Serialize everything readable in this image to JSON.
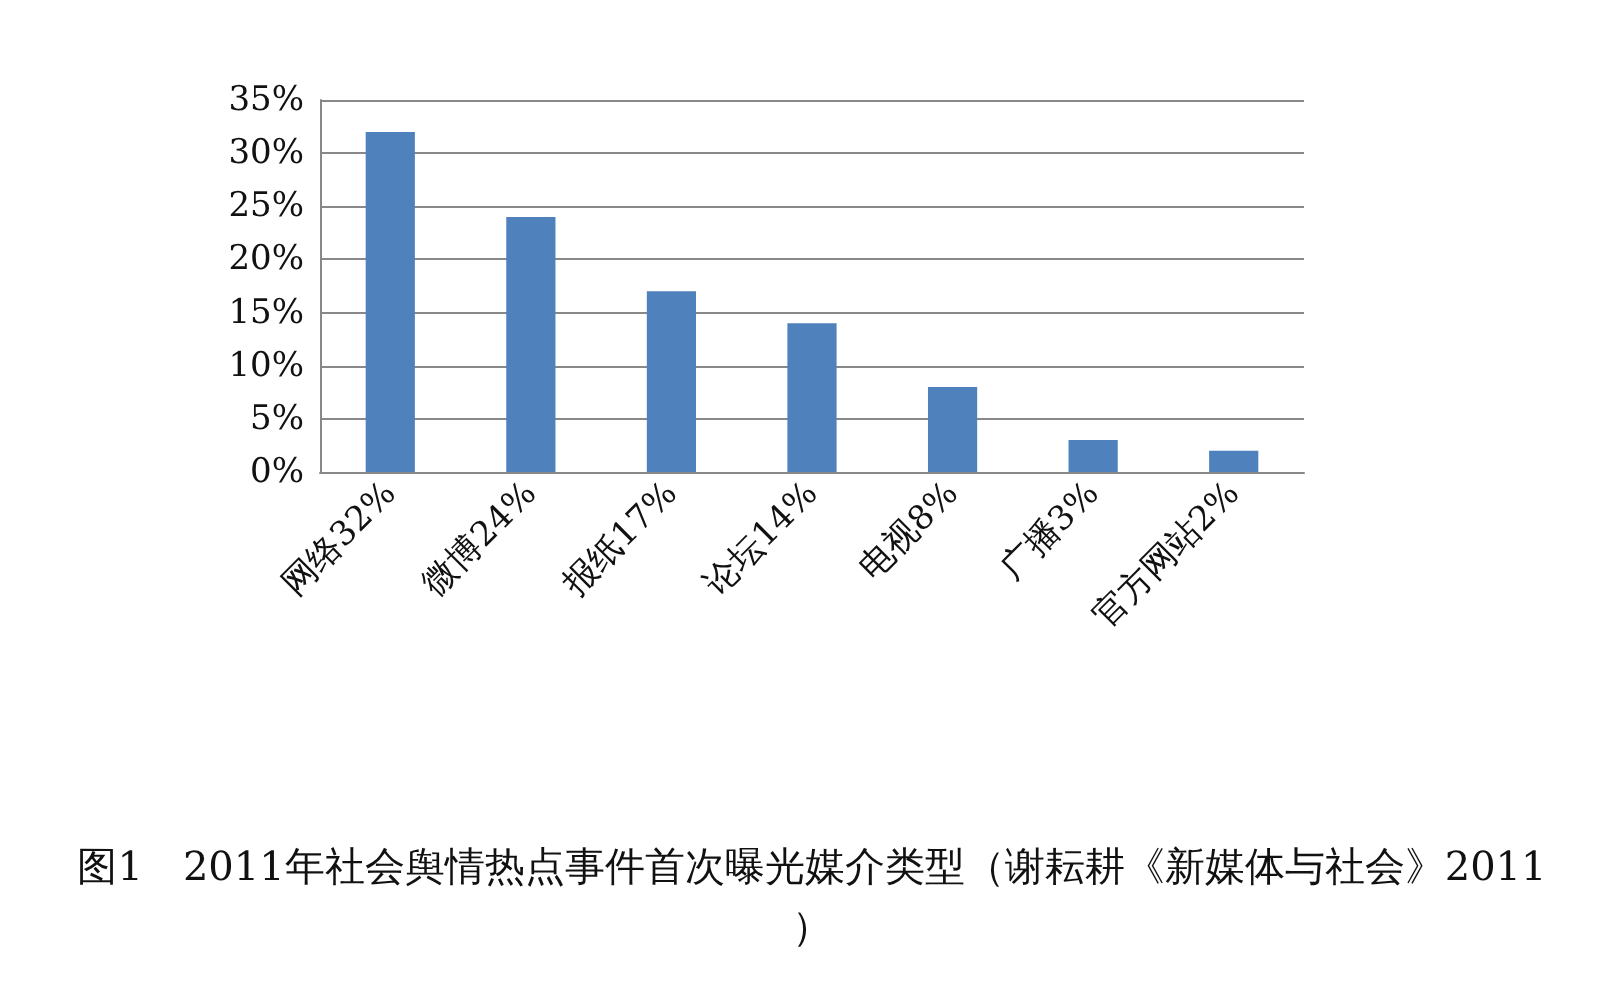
{
  "chart_data": {
    "type": "bar",
    "title": "图1　2011年社会舆情热点事件首次曝光媒介类型（谢耘耕《新媒体与社会》2011）",
    "categories": [
      "网络32%",
      "微博24%",
      "报纸17%",
      "论坛14%",
      "电视8%",
      "广播3%",
      "官方网站2%"
    ],
    "values": [
      32,
      24,
      17,
      14,
      8,
      3,
      2
    ],
    "color": "#4f81bd",
    "ylim": [
      0,
      35
    ],
    "yticks": [
      {
        "value": 0,
        "label": "0%"
      },
      {
        "value": 5,
        "label": "5%"
      },
      {
        "value": 10,
        "label": "10%"
      },
      {
        "value": 15,
        "label": "15%"
      },
      {
        "value": 20,
        "label": "20%"
      },
      {
        "value": 25,
        "label": "25%"
      },
      {
        "value": 30,
        "label": "30%"
      },
      {
        "value": 35,
        "label": "35%"
      }
    ],
    "grid": true
  }
}
